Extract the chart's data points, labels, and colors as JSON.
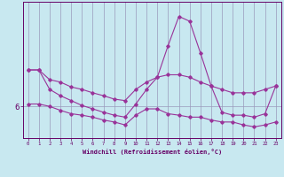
{
  "bg_color": "#c8e8f0",
  "grid_color": "#9999bb",
  "line_color": "#993399",
  "xlabel": "Windchill (Refroidissement éolien,°C)",
  "hours": [
    0,
    1,
    2,
    3,
    4,
    5,
    6,
    7,
    8,
    9,
    10,
    11,
    12,
    13,
    14,
    15,
    16,
    17,
    18,
    19,
    20,
    21,
    22,
    23
  ],
  "series1": [
    6.75,
    6.75,
    6.55,
    6.5,
    6.4,
    6.35,
    6.28,
    6.22,
    6.15,
    6.12,
    6.35,
    6.5,
    6.6,
    6.65,
    6.65,
    6.6,
    6.5,
    6.42,
    6.35,
    6.28,
    6.28,
    6.28,
    6.35,
    6.42
  ],
  "series2": [
    6.75,
    6.75,
    6.35,
    6.22,
    6.12,
    6.02,
    5.95,
    5.88,
    5.82,
    5.78,
    6.05,
    6.35,
    6.6,
    7.25,
    7.85,
    7.75,
    7.1,
    6.42,
    5.88,
    5.82,
    5.82,
    5.78,
    5.85,
    6.42
  ],
  "series3": [
    6.05,
    6.05,
    6.0,
    5.92,
    5.85,
    5.82,
    5.78,
    5.72,
    5.68,
    5.62,
    5.82,
    5.95,
    5.95,
    5.85,
    5.82,
    5.78,
    5.78,
    5.72,
    5.68,
    5.68,
    5.62,
    5.58,
    5.62,
    5.68
  ],
  "xlim": [
    -0.5,
    23.5
  ],
  "ylim": [
    5.35,
    8.15
  ],
  "yticks": [
    6
  ],
  "ytick_labels": [
    "6"
  ]
}
